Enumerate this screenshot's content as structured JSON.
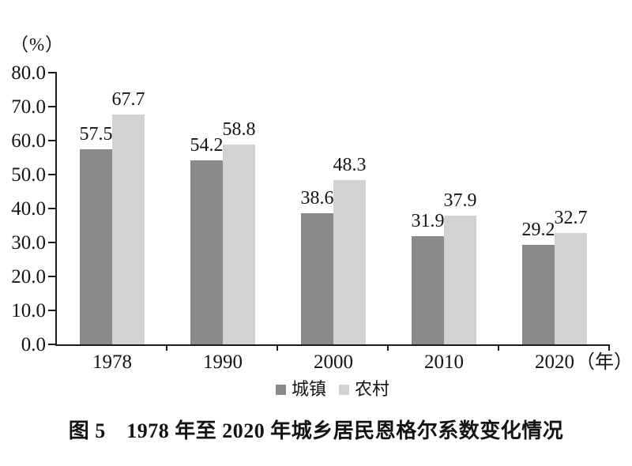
{
  "colors": {
    "background": "#ffffff",
    "axis": "#1c1c1c",
    "text": "#141414",
    "urban_bar": "#8a8a8a",
    "rural_bar": "#d2d2d2"
  },
  "chart_data": {
    "type": "bar",
    "title": "图 5　1978 年至 2020 年城乡居民恩格尔系数变化情况",
    "y_axis_unit": "（%）",
    "x_axis_unit": "（年）",
    "categories": [
      "1978",
      "1990",
      "2000",
      "2010",
      "2020"
    ],
    "series": [
      {
        "key": "urban",
        "name": "城镇",
        "color": "#8a8a8a",
        "values": [
          57.5,
          54.2,
          38.6,
          31.9,
          29.2
        ]
      },
      {
        "key": "rural",
        "name": "农村",
        "color": "#d2d2d2",
        "values": [
          67.7,
          58.8,
          48.3,
          37.9,
          32.7
        ]
      }
    ],
    "value_labels_shown": true,
    "ylim": [
      0,
      80
    ],
    "ytick_labels": [
      "80.0",
      "70.0",
      "60.0",
      "50.0",
      "40.0",
      "30.0",
      "20.0",
      "10.0",
      "0.0"
    ],
    "grid": false,
    "legend_position": "bottom"
  }
}
